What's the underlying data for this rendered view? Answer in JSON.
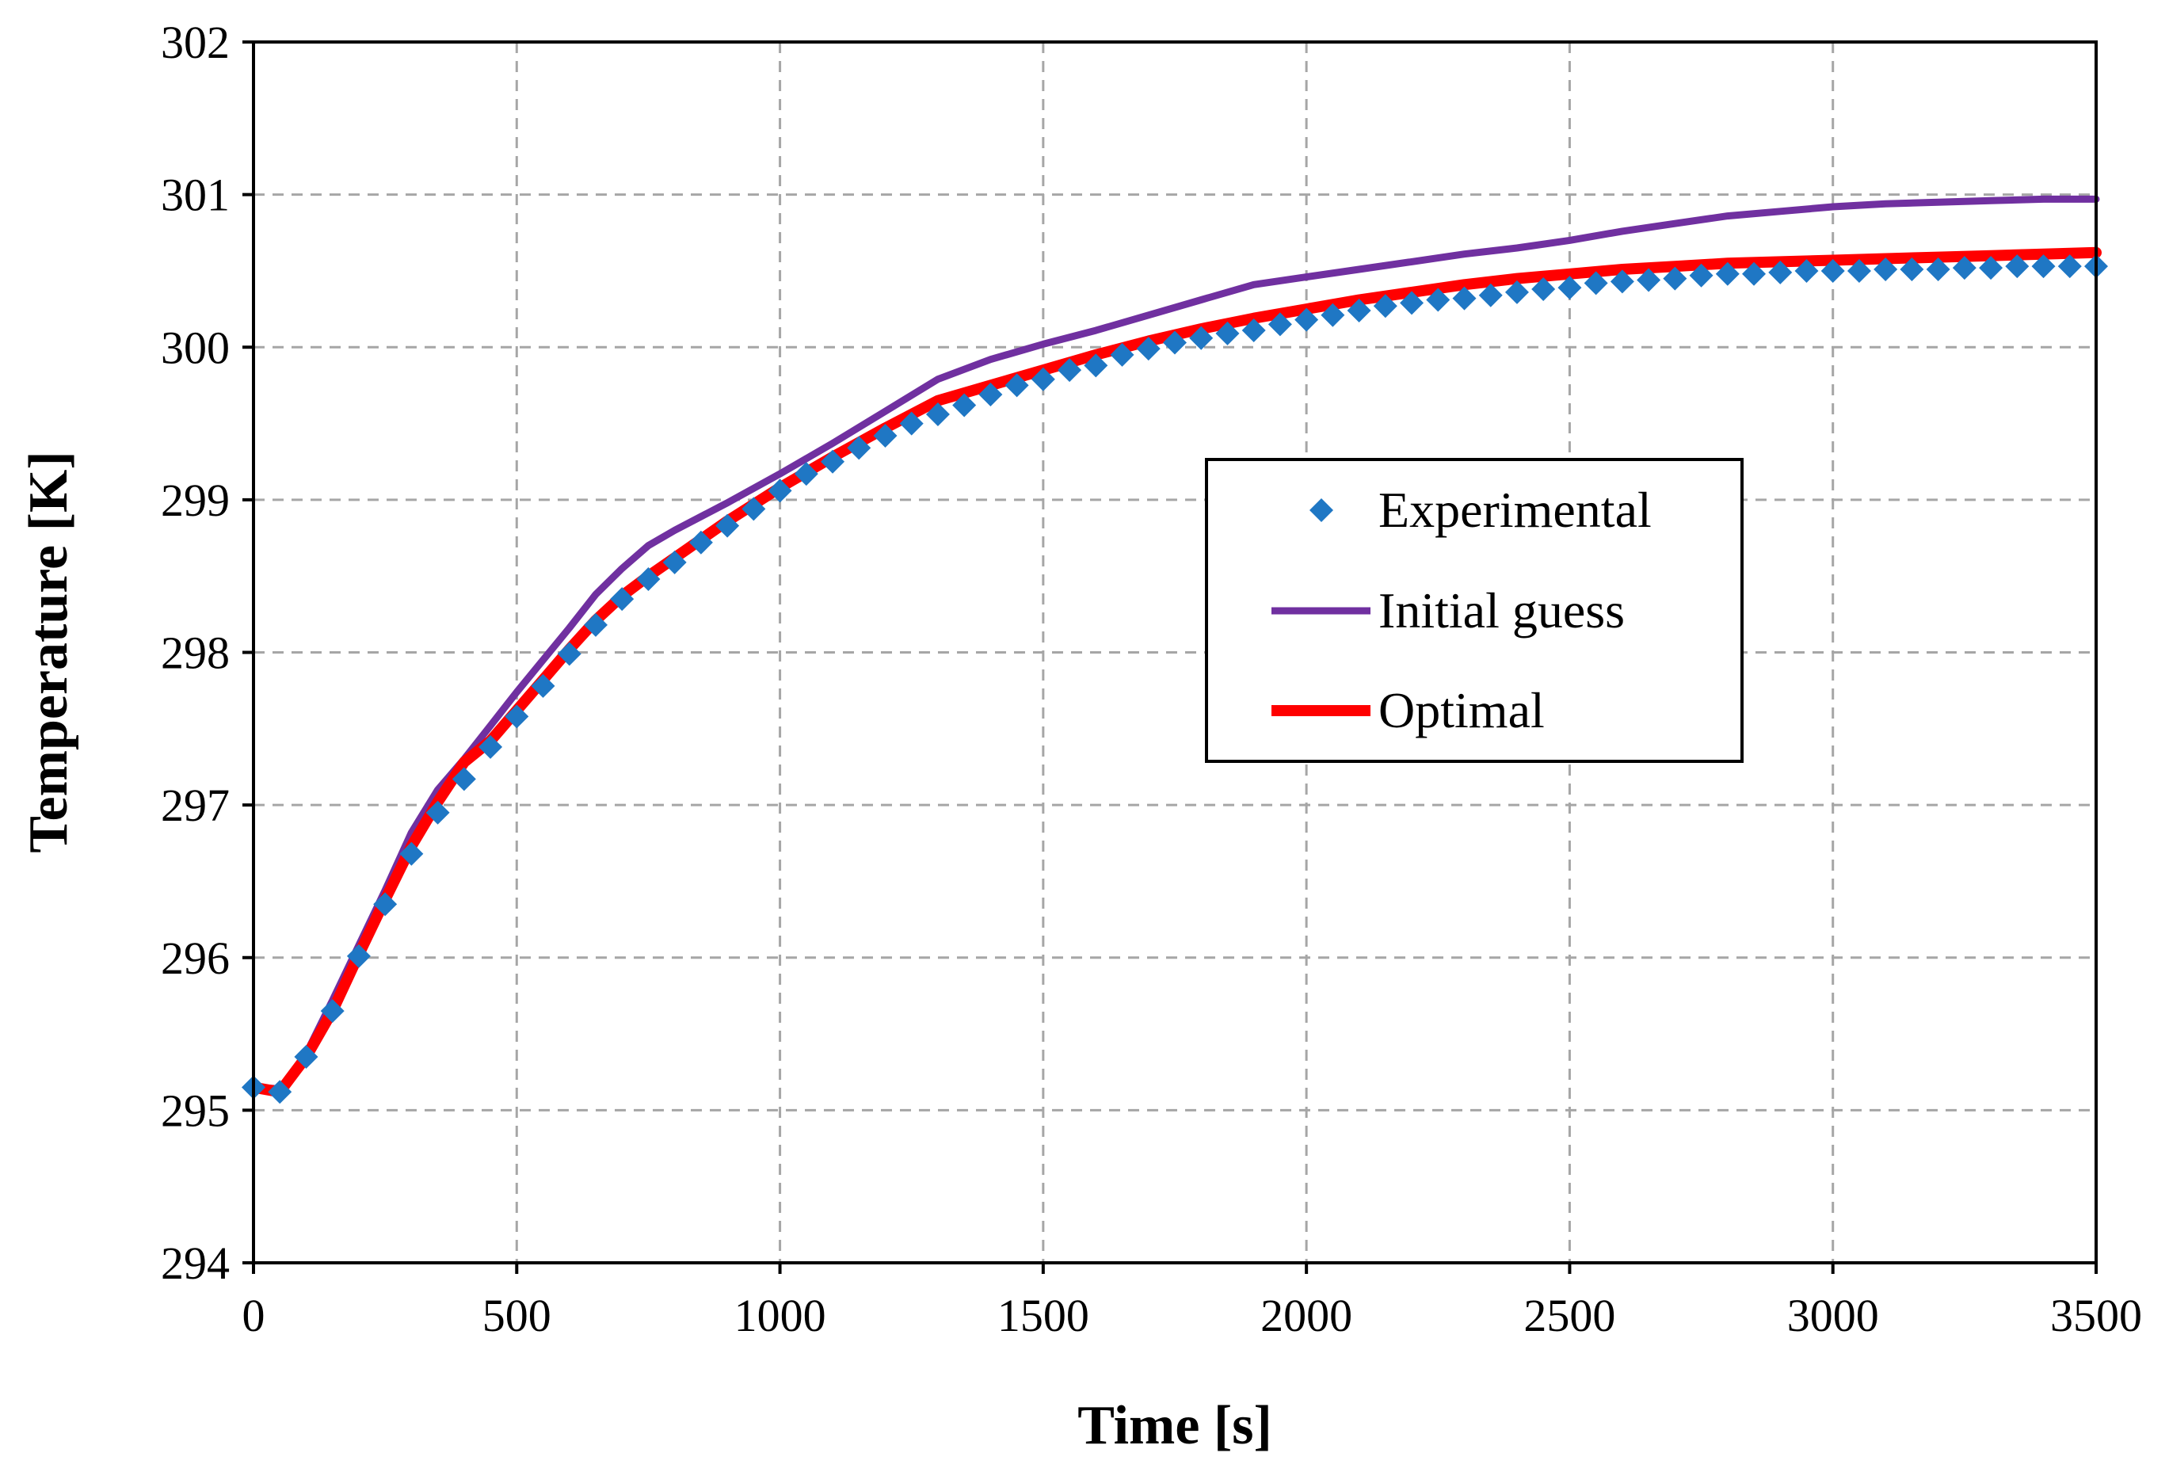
{
  "chart_data": {
    "type": "line",
    "title": "",
    "xlabel": "Time [s]",
    "ylabel": "Temperature [K]",
    "xlim": [
      0,
      3500
    ],
    "ylim": [
      294,
      302
    ],
    "xticks": [
      0,
      500,
      1000,
      1500,
      2000,
      2500,
      3000,
      3500
    ],
    "yticks": [
      294,
      295,
      296,
      297,
      298,
      299,
      300,
      301,
      302
    ],
    "grid": true,
    "legend_position": "center-right",
    "series": [
      {
        "name": "Experimental",
        "style": "markers",
        "marker": "diamond",
        "color": "#1f77c4",
        "x": [
          0,
          50,
          100,
          150,
          200,
          250,
          300,
          350,
          400,
          450,
          500,
          550,
          600,
          650,
          700,
          750,
          800,
          850,
          900,
          950,
          1000,
          1050,
          1100,
          1150,
          1200,
          1250,
          1300,
          1350,
          1400,
          1450,
          1500,
          1550,
          1600,
          1650,
          1700,
          1750,
          1800,
          1850,
          1900,
          1950,
          2000,
          2050,
          2100,
          2150,
          2200,
          2250,
          2300,
          2350,
          2400,
          2450,
          2500,
          2550,
          2600,
          2650,
          2700,
          2750,
          2800,
          2850,
          2900,
          2950,
          3000,
          3050,
          3100,
          3150,
          3200,
          3250,
          3300,
          3350,
          3400,
          3450,
          3500
        ],
        "y": [
          295.15,
          295.12,
          295.35,
          295.65,
          296.01,
          296.35,
          296.68,
          296.95,
          297.17,
          297.38,
          297.58,
          297.78,
          297.99,
          298.18,
          298.35,
          298.48,
          298.59,
          298.72,
          298.83,
          298.94,
          299.06,
          299.17,
          299.25,
          299.34,
          299.42,
          299.5,
          299.56,
          299.62,
          299.69,
          299.75,
          299.79,
          299.85,
          299.88,
          299.95,
          299.99,
          300.03,
          300.06,
          300.09,
          300.11,
          300.15,
          300.18,
          300.21,
          300.24,
          300.27,
          300.29,
          300.31,
          300.32,
          300.34,
          300.36,
          300.38,
          300.39,
          300.42,
          300.43,
          300.44,
          300.45,
          300.47,
          300.48,
          300.48,
          300.49,
          300.5,
          300.5,
          300.5,
          300.51,
          300.51,
          300.51,
          300.52,
          300.52,
          300.53,
          300.53,
          300.53,
          300.53
        ]
      },
      {
        "name": "Initial guess",
        "style": "line",
        "color": "#7030a0",
        "x": [
          0,
          50,
          100,
          150,
          200,
          250,
          300,
          350,
          400,
          450,
          500,
          550,
          600,
          650,
          700,
          750,
          800,
          900,
          1000,
          1100,
          1200,
          1300,
          1400,
          1500,
          1600,
          1700,
          1800,
          1900,
          2000,
          2100,
          2200,
          2300,
          2400,
          2500,
          2600,
          2700,
          2800,
          2900,
          3000,
          3100,
          3200,
          3300,
          3400,
          3500
        ],
        "y": [
          295.15,
          295.14,
          295.37,
          295.72,
          296.08,
          296.44,
          296.82,
          297.1,
          297.3,
          297.52,
          297.74,
          297.95,
          298.16,
          298.38,
          298.55,
          298.7,
          298.8,
          298.98,
          299.17,
          299.37,
          299.58,
          299.79,
          299.92,
          300.02,
          300.11,
          300.21,
          300.31,
          300.41,
          300.46,
          300.51,
          300.56,
          300.61,
          300.65,
          300.7,
          300.76,
          300.81,
          300.86,
          300.89,
          300.92,
          300.94,
          300.95,
          300.96,
          300.97,
          300.97
        ]
      },
      {
        "name": "Optimal",
        "style": "line",
        "color": "#ff0000",
        "x": [
          0,
          50,
          100,
          150,
          200,
          250,
          300,
          350,
          400,
          450,
          500,
          550,
          600,
          650,
          700,
          750,
          800,
          900,
          1000,
          1100,
          1200,
          1300,
          1400,
          1500,
          1600,
          1700,
          1800,
          1900,
          2000,
          2100,
          2200,
          2300,
          2400,
          2500,
          2600,
          2700,
          2800,
          2900,
          3000,
          3100,
          3200,
          3300,
          3400,
          3500
        ],
        "y": [
          295.15,
          295.12,
          295.35,
          295.65,
          296.02,
          296.38,
          296.73,
          297.02,
          297.28,
          297.42,
          297.62,
          297.82,
          298.02,
          298.21,
          298.37,
          298.5,
          298.62,
          298.86,
          299.08,
          299.28,
          299.47,
          299.65,
          299.75,
          299.85,
          299.95,
          300.04,
          300.12,
          300.19,
          300.25,
          300.31,
          300.36,
          300.41,
          300.45,
          300.48,
          300.51,
          300.53,
          300.55,
          300.56,
          300.57,
          300.58,
          300.59,
          300.6,
          300.61,
          300.62
        ]
      }
    ]
  }
}
